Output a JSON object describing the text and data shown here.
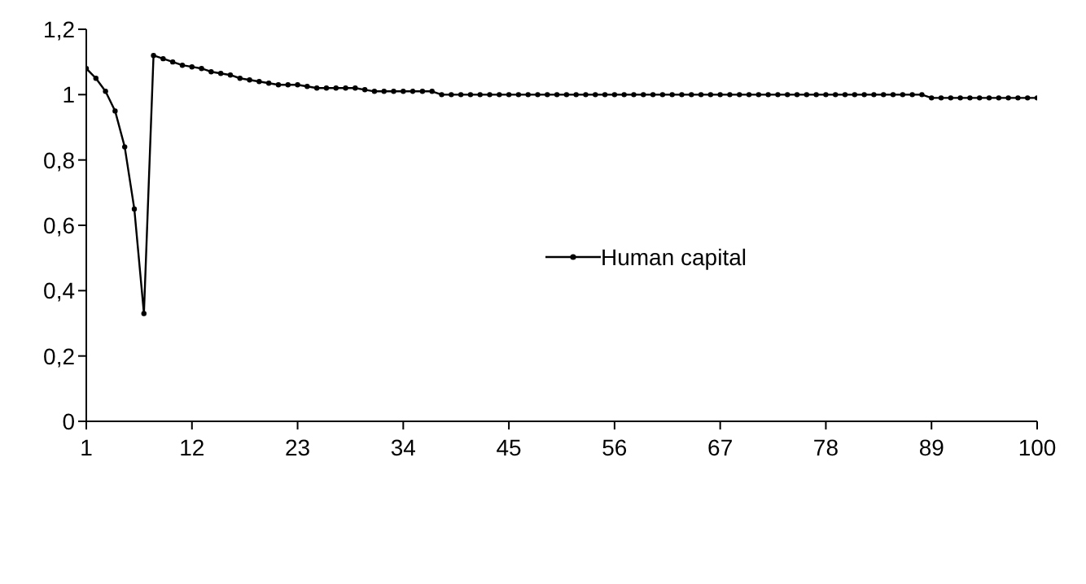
{
  "chart_data": {
    "type": "line",
    "x": [
      1,
      2,
      3,
      4,
      5,
      6,
      7,
      8,
      9,
      10,
      11,
      12,
      13,
      14,
      15,
      16,
      17,
      18,
      19,
      20,
      21,
      22,
      23,
      24,
      25,
      26,
      27,
      28,
      29,
      30,
      31,
      32,
      33,
      34,
      35,
      36,
      37,
      38,
      39,
      40,
      41,
      42,
      43,
      44,
      45,
      46,
      47,
      48,
      49,
      50,
      51,
      52,
      53,
      54,
      55,
      56,
      57,
      58,
      59,
      60,
      61,
      62,
      63,
      64,
      65,
      66,
      67,
      68,
      69,
      70,
      71,
      72,
      73,
      74,
      75,
      76,
      77,
      78,
      79,
      80,
      81,
      82,
      83,
      84,
      85,
      86,
      87,
      88,
      89,
      90,
      91,
      92,
      93,
      94,
      95,
      96,
      97,
      98,
      99,
      100
    ],
    "series": [
      {
        "name": "Human capital",
        "color": "#000000",
        "values": [
          1.08,
          1.05,
          1.01,
          0.95,
          0.84,
          0.65,
          0.33,
          1.12,
          1.11,
          1.1,
          1.09,
          1.085,
          1.08,
          1.07,
          1.065,
          1.06,
          1.05,
          1.045,
          1.04,
          1.035,
          1.03,
          1.03,
          1.03,
          1.025,
          1.02,
          1.02,
          1.02,
          1.02,
          1.02,
          1.015,
          1.01,
          1.01,
          1.01,
          1.01,
          1.01,
          1.01,
          1.01,
          1,
          1,
          1,
          1,
          1,
          1,
          1,
          1,
          1,
          1,
          1,
          1,
          1,
          1,
          1,
          1,
          1,
          1,
          1,
          1,
          1,
          1,
          1,
          1,
          1,
          1,
          1,
          1,
          1,
          1,
          1,
          1,
          1,
          1,
          1,
          1,
          1,
          1,
          1,
          1,
          1,
          1,
          1,
          1,
          1,
          1,
          1,
          1,
          1,
          1,
          1,
          0.99,
          0.99,
          0.99,
          0.99,
          0.99,
          0.99,
          0.99,
          0.99,
          0.99,
          0.99,
          0.99,
          0.99
        ]
      }
    ],
    "xlim": [
      1,
      100
    ],
    "xticks": [
      1,
      12,
      23,
      34,
      45,
      56,
      67,
      78,
      89,
      100
    ],
    "ylim": [
      0,
      1.2
    ],
    "yticks": [
      0,
      {
        "value": 0.2,
        "label": "0,2"
      },
      {
        "value": 0.4,
        "label": "0,4"
      },
      {
        "value": 0.6,
        "label": "0,6"
      },
      {
        "value": 0.8,
        "label": "0,8"
      },
      1,
      {
        "value": 1.2,
        "label": "1,2"
      }
    ],
    "grid": false,
    "legend": "right",
    "marker": "circle",
    "line_style": "solid"
  }
}
